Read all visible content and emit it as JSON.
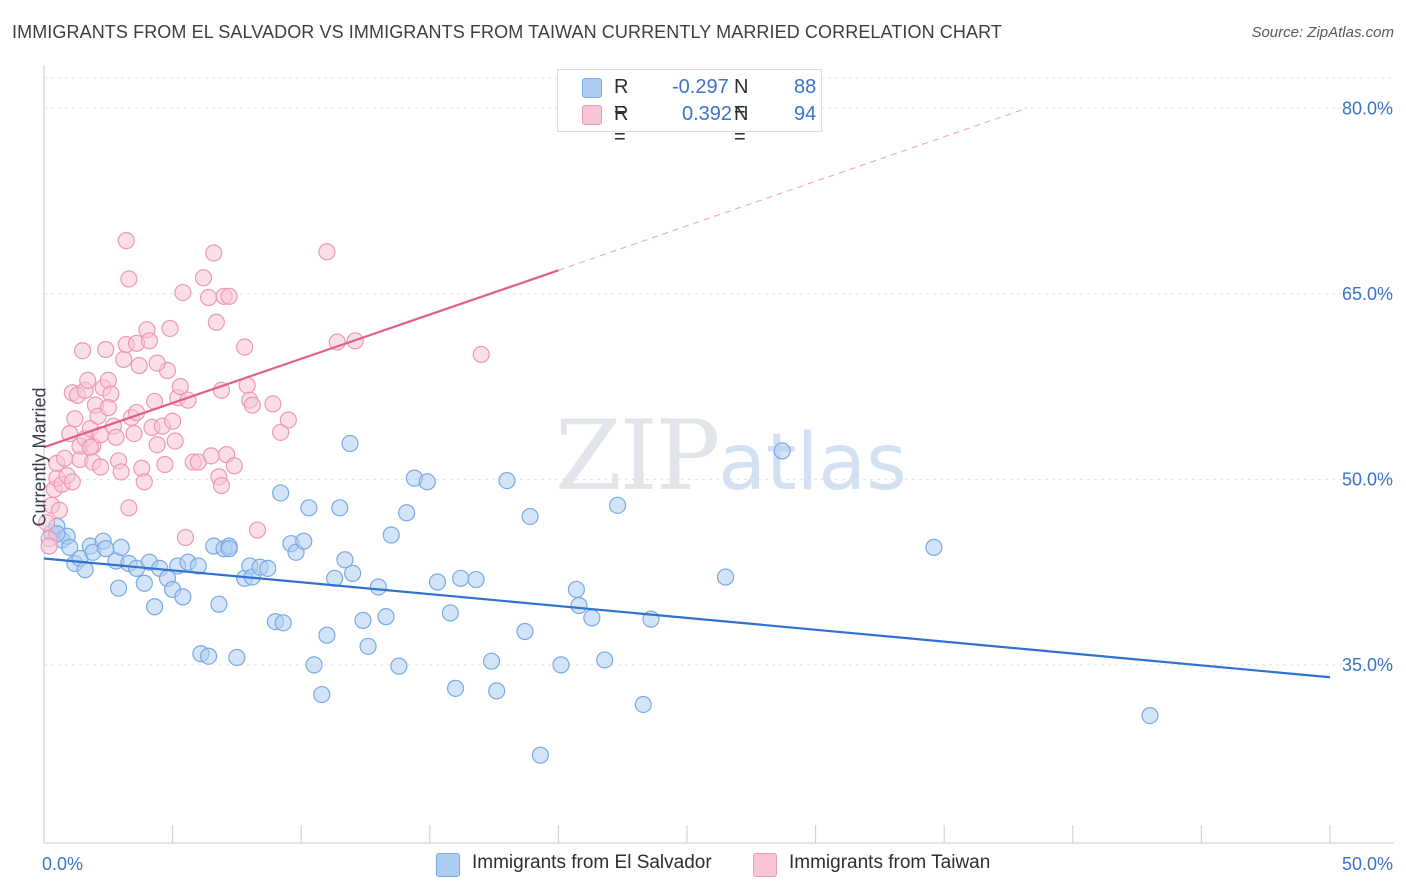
{
  "header": {
    "title": "IMMIGRANTS FROM EL SALVADOR VS IMMIGRANTS FROM TAIWAN CURRENTLY MARRIED CORRELATION CHART",
    "source": "Source: ZipAtlas.com"
  },
  "watermark": {
    "zip": "ZIP",
    "atlas": "atlas"
  },
  "legend_top": {
    "rows": [
      {
        "r_label": "R =",
        "r_value": "-0.297",
        "n_label": "N =",
        "n_value": "88",
        "color": "#aecdf3",
        "border": "#7aaae3"
      },
      {
        "r_label": "R =",
        "r_value": "0.392",
        "n_label": "N =",
        "n_value": "94",
        "color": "#f8c5d6",
        "border": "#ee98b6"
      }
    ]
  },
  "legend_bottom": [
    {
      "label": "Immigrants from El Salvador",
      "color": "#aecdf3",
      "border": "#7aaae3"
    },
    {
      "label": "Immigrants from Taiwan",
      "color": "#f8c5d6",
      "border": "#ee98b6"
    }
  ],
  "chart_data": {
    "type": "scatter",
    "title": "IMMIGRANTS FROM EL SALVADOR VS IMMIGRANTS FROM TAIWAN CURRENTLY MARRIED CORRELATION CHART",
    "ylabel": "Currently Married",
    "xlim": [
      0,
      50
    ],
    "ylim": [
      20.6,
      83.5
    ],
    "x_tick_labels": [
      {
        "value": 0,
        "label": "0.0%"
      },
      {
        "value": 50,
        "label": "50.0%"
      }
    ],
    "y_tick_labels": [
      {
        "value": 80,
        "label": "80.0%"
      },
      {
        "value": 65,
        "label": "65.0%"
      },
      {
        "value": 50,
        "label": "50.0%"
      },
      {
        "value": 35,
        "label": "35.0%"
      }
    ],
    "grid": "horizontal dashed",
    "legend": "top-center and bottom",
    "series": [
      {
        "name": "Immigrants from El Salvador",
        "color": "#7aaae3",
        "fill": "#aecdf3",
        "line_color": "#2f72d1",
        "trend": {
          "x": [
            0,
            50
          ],
          "y": [
            43.6,
            34.0
          ]
        },
        "points": [
          [
            0.3,
            45.7
          ],
          [
            0.5,
            46.2
          ],
          [
            0.7,
            45.1
          ],
          [
            0.9,
            45.4
          ],
          [
            1.0,
            44.5
          ],
          [
            1.2,
            43.2
          ],
          [
            1.4,
            43.6
          ],
          [
            1.6,
            42.7
          ],
          [
            1.8,
            44.6
          ],
          [
            1.9,
            44.1
          ],
          [
            2.3,
            45.0
          ],
          [
            2.4,
            44.4
          ],
          [
            2.8,
            43.4
          ],
          [
            2.9,
            41.2
          ],
          [
            3.0,
            44.5
          ],
          [
            3.3,
            43.2
          ],
          [
            3.6,
            42.8
          ],
          [
            3.9,
            41.6
          ],
          [
            4.1,
            43.3
          ],
          [
            4.3,
            39.7
          ],
          [
            4.5,
            42.8
          ],
          [
            4.8,
            42.0
          ],
          [
            5.0,
            41.1
          ],
          [
            5.2,
            43.0
          ],
          [
            5.4,
            40.5
          ],
          [
            5.6,
            43.3
          ],
          [
            6.0,
            43.0
          ],
          [
            6.1,
            35.9
          ],
          [
            6.4,
            35.7
          ],
          [
            6.6,
            44.6
          ],
          [
            6.8,
            39.9
          ],
          [
            7.0,
            44.4
          ],
          [
            7.2,
            44.6
          ],
          [
            7.5,
            35.6
          ],
          [
            7.8,
            42.0
          ],
          [
            8.0,
            43.0
          ],
          [
            8.1,
            42.1
          ],
          [
            8.4,
            42.9
          ],
          [
            8.7,
            42.8
          ],
          [
            9.0,
            38.5
          ],
          [
            9.2,
            48.9
          ],
          [
            9.3,
            38.4
          ],
          [
            9.6,
            44.8
          ],
          [
            9.8,
            44.1
          ],
          [
            10.1,
            45.0
          ],
          [
            10.3,
            47.7
          ],
          [
            10.5,
            35.0
          ],
          [
            10.8,
            32.6
          ],
          [
            11.0,
            37.4
          ],
          [
            11.3,
            42.0
          ],
          [
            11.5,
            47.7
          ],
          [
            11.7,
            43.5
          ],
          [
            12.0,
            42.4
          ],
          [
            12.4,
            38.6
          ],
          [
            12.6,
            36.5
          ],
          [
            13.0,
            41.3
          ],
          [
            13.3,
            38.9
          ],
          [
            13.5,
            45.5
          ],
          [
            13.8,
            34.9
          ],
          [
            14.1,
            47.3
          ],
          [
            14.4,
            50.1
          ],
          [
            14.9,
            49.8
          ],
          [
            15.3,
            41.7
          ],
          [
            15.8,
            39.2
          ],
          [
            16.0,
            33.1
          ],
          [
            16.2,
            42.0
          ],
          [
            16.8,
            41.9
          ],
          [
            17.4,
            35.3
          ],
          [
            17.6,
            32.9
          ],
          [
            18.0,
            49.9
          ],
          [
            18.7,
            37.7
          ],
          [
            18.9,
            47.0
          ],
          [
            19.3,
            27.7
          ],
          [
            20.1,
            35.0
          ],
          [
            20.7,
            41.1
          ],
          [
            20.8,
            39.8
          ],
          [
            21.3,
            38.8
          ],
          [
            21.8,
            35.4
          ],
          [
            22.3,
            47.9
          ],
          [
            23.3,
            31.8
          ],
          [
            23.6,
            38.7
          ],
          [
            26.5,
            42.1
          ],
          [
            28.7,
            52.3
          ],
          [
            34.6,
            44.5
          ],
          [
            43.0,
            30.9
          ],
          [
            11.9,
            52.9
          ],
          [
            7.2,
            44.4
          ],
          [
            0.5,
            45.6
          ]
        ]
      },
      {
        "name": "Immigrants from Taiwan",
        "color": "#ee98b6",
        "fill": "#f8c5d6",
        "line_color": "#e0608b",
        "trend": {
          "x": [
            0,
            20.0
          ],
          "y": [
            52.6,
            66.9
          ]
        },
        "trend_dashed": {
          "x": [
            20.0,
            38.2
          ],
          "y": [
            66.9,
            80.0
          ]
        },
        "points": [
          [
            0.1,
            46.5
          ],
          [
            0.2,
            45.2
          ],
          [
            0.2,
            44.6
          ],
          [
            0.3,
            47.9
          ],
          [
            0.4,
            49.2
          ],
          [
            0.5,
            50.1
          ],
          [
            0.5,
            51.3
          ],
          [
            0.6,
            47.5
          ],
          [
            0.7,
            49.6
          ],
          [
            0.8,
            51.7
          ],
          [
            0.9,
            50.3
          ],
          [
            1.0,
            53.7
          ],
          [
            1.1,
            49.8
          ],
          [
            1.1,
            57.0
          ],
          [
            1.2,
            54.9
          ],
          [
            1.3,
            56.8
          ],
          [
            1.4,
            51.6
          ],
          [
            1.4,
            52.7
          ],
          [
            1.5,
            60.4
          ],
          [
            1.6,
            57.2
          ],
          [
            1.6,
            53.3
          ],
          [
            1.7,
            58.0
          ],
          [
            1.8,
            54.1
          ],
          [
            1.9,
            51.4
          ],
          [
            1.9,
            52.7
          ],
          [
            2.0,
            56.0
          ],
          [
            2.1,
            55.1
          ],
          [
            2.2,
            51.0
          ],
          [
            2.2,
            53.6
          ],
          [
            2.3,
            57.4
          ],
          [
            2.4,
            60.5
          ],
          [
            2.5,
            58.0
          ],
          [
            2.6,
            56.9
          ],
          [
            2.7,
            54.3
          ],
          [
            2.8,
            53.4
          ],
          [
            2.9,
            51.5
          ],
          [
            3.0,
            50.6
          ],
          [
            3.1,
            59.7
          ],
          [
            3.2,
            60.9
          ],
          [
            3.3,
            66.2
          ],
          [
            3.3,
            47.7
          ],
          [
            3.4,
            55.0
          ],
          [
            3.5,
            53.7
          ],
          [
            3.6,
            61.0
          ],
          [
            3.7,
            59.2
          ],
          [
            3.8,
            50.9
          ],
          [
            3.9,
            49.8
          ],
          [
            4.0,
            62.1
          ],
          [
            4.1,
            61.2
          ],
          [
            4.2,
            54.2
          ],
          [
            4.3,
            56.3
          ],
          [
            4.4,
            52.8
          ],
          [
            4.6,
            54.3
          ],
          [
            4.7,
            51.2
          ],
          [
            4.8,
            58.8
          ],
          [
            4.9,
            62.2
          ],
          [
            5.0,
            54.7
          ],
          [
            5.1,
            53.1
          ],
          [
            5.2,
            56.6
          ],
          [
            5.4,
            65.1
          ],
          [
            5.5,
            45.3
          ],
          [
            5.6,
            56.4
          ],
          [
            5.8,
            51.4
          ],
          [
            6.0,
            51.4
          ],
          [
            6.2,
            66.3
          ],
          [
            6.4,
            64.7
          ],
          [
            6.5,
            51.9
          ],
          [
            6.6,
            68.3
          ],
          [
            6.7,
            62.7
          ],
          [
            6.8,
            50.2
          ],
          [
            6.9,
            49.5
          ],
          [
            7.0,
            64.8
          ],
          [
            7.1,
            52.0
          ],
          [
            7.2,
            64.8
          ],
          [
            7.4,
            51.1
          ],
          [
            7.8,
            60.7
          ],
          [
            7.9,
            57.6
          ],
          [
            8.0,
            56.4
          ],
          [
            8.1,
            56.0
          ],
          [
            8.3,
            45.9
          ],
          [
            8.9,
            56.1
          ],
          [
            9.2,
            53.8
          ],
          [
            9.5,
            54.8
          ],
          [
            11.0,
            68.4
          ],
          [
            11.4,
            61.1
          ],
          [
            12.1,
            61.2
          ],
          [
            17.0,
            60.1
          ],
          [
            3.2,
            69.3
          ],
          [
            5.3,
            57.5
          ],
          [
            2.5,
            55.8
          ],
          [
            1.8,
            52.6
          ],
          [
            4.4,
            59.4
          ],
          [
            3.6,
            55.4
          ],
          [
            6.9,
            57.2
          ]
        ]
      }
    ]
  }
}
